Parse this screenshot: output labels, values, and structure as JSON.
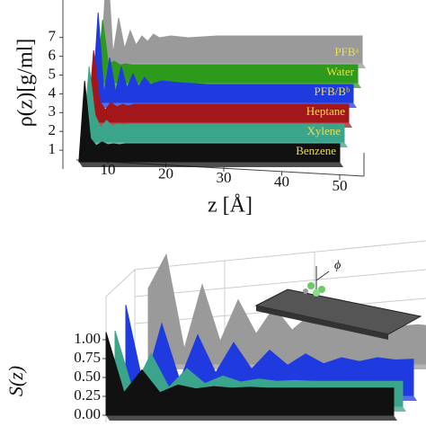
{
  "chart_data": [
    {
      "type": "waterfall",
      "ylabel": "ρ(z)[g/ml]",
      "xlabel": "z [Å]",
      "xlim": [
        5,
        50
      ],
      "xticks": [
        10,
        20,
        30,
        40,
        50
      ],
      "ylim": [
        0,
        7
      ],
      "yticks": [
        1,
        2,
        3,
        4,
        5,
        6,
        7
      ],
      "x": [
        5,
        6,
        7,
        8,
        9,
        10,
        11,
        12,
        13,
        14,
        15,
        17,
        20,
        25,
        30,
        40,
        50
      ],
      "series": [
        {
          "name": "Benzene",
          "color": "#111111",
          "values": [
            0,
            4.5,
            1.3,
            0.9,
            1.1,
            0.95,
            1.0,
            0.95,
            1.0,
            1.0,
            1.0,
            1.0,
            1.0,
            1.0,
            1.0,
            1.0,
            1.0
          ]
        },
        {
          "name": "Xylene",
          "color": "#3aa58a",
          "values": [
            0,
            4.2,
            1.5,
            0.8,
            1.2,
            0.9,
            1.0,
            0.95,
            1.0,
            1.0,
            1.0,
            1.0,
            1.0,
            1.0,
            1.0,
            1.0,
            1.0
          ]
        },
        {
          "name": "Heptane",
          "color": "#a3161a",
          "values": [
            0,
            4.0,
            1.2,
            0.7,
            1.1,
            0.85,
            1.0,
            0.9,
            1.0,
            1.0,
            1.0,
            1.0,
            1.0,
            1.0,
            1.0,
            1.0,
            1.0
          ]
        },
        {
          "name": "PFB/Bᵇ",
          "color": "#1f3be0",
          "values": [
            0,
            5.0,
            0.5,
            2.5,
            0.6,
            2.0,
            0.8,
            1.6,
            0.9,
            1.4,
            1.0,
            1.2,
            1.1,
            1.0,
            1.0,
            1.0,
            1.0
          ]
        },
        {
          "name": "Water",
          "color": "#2e9a1c",
          "values": [
            0,
            3.5,
            1.0,
            1.2,
            1.0,
            1.05,
            1.0,
            1.0,
            1.0,
            1.0,
            1.0,
            1.0,
            1.0,
            1.0,
            1.0,
            1.0,
            1.0
          ]
        },
        {
          "name": "PFBᵃ",
          "color": "#9a9a9a",
          "values": [
            0,
            6.0,
            0.5,
            2.5,
            0.8,
            1.8,
            1.0,
            1.5,
            1.2,
            1.6,
            1.4,
            1.5,
            1.4,
            1.5,
            1.5,
            1.5,
            1.5
          ]
        }
      ]
    },
    {
      "type": "waterfall",
      "ylabel": "S(z)",
      "annotation": "ϕ",
      "ylim": [
        0,
        1
      ],
      "yticks": [
        {
          "value": 0,
          "label": "0.00"
        },
        {
          "value": 0.25,
          "label": "0.25"
        },
        {
          "value": 0.5,
          "label": "0.50"
        },
        {
          "value": 0.75,
          "label": "0.75"
        },
        {
          "value": 1,
          "label": "1.00"
        }
      ],
      "series": [
        {
          "color": "#111111",
          "values": [
            1.1,
            0.3,
            0.6,
            0.3,
            0.4,
            0.35,
            0.38,
            0.36,
            0.37,
            0.36,
            0.36,
            0.36,
            0.36,
            0.36,
            0.36,
            0.36,
            0.36
          ]
        },
        {
          "name": "Xylene",
          "color": "#3aa58a",
          "values": [
            1.0,
            0.2,
            0.7,
            0.25,
            0.5,
            0.3,
            0.4,
            0.32,
            0.36,
            0.33,
            0.34,
            0.33,
            0.33,
            0.33,
            0.33,
            0.33,
            0.33
          ]
        },
        {
          "name": "PFB/Bᵇ",
          "color": "#1f3be0",
          "values": [
            1.2,
            0.1,
            0.95,
            0.2,
            0.8,
            0.3,
            0.7,
            0.35,
            0.6,
            0.4,
            0.55,
            0.42,
            0.5,
            0.45,
            0.5,
            0.47,
            0.48
          ]
        },
        {
          "name": "PFBᵃ",
          "color": "#9a9a9a",
          "values": [
            1.0,
            1.45,
            0.2,
            1.05,
            0.3,
            0.85,
            0.4,
            0.75,
            0.45,
            0.65,
            0.5,
            0.6,
            0.5,
            0.55,
            0.5,
            0.52,
            0.5
          ]
        }
      ]
    }
  ]
}
